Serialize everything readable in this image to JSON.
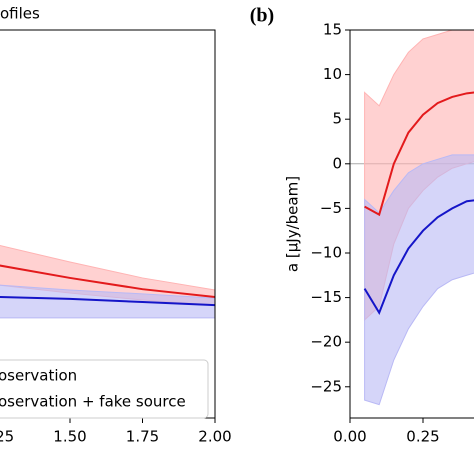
{
  "chart_data": [
    {
      "type": "line",
      "title": "ofiles",
      "x": [
        1.25,
        1.5,
        1.75,
        2.0
      ],
      "xlim": [
        1.0,
        2.0
      ],
      "xticks": [
        1.25,
        {
          "value": 1.5,
          "label": "1.50"
        },
        1.75,
        {
          "value": 2.0,
          "label": "2.00"
        }
      ],
      "ylim": [
        0,
        100
      ],
      "series": [
        {
          "name": "oservation",
          "color": "#e31a1c",
          "band_color": "#ffb3b3",
          "values": [
            39.4,
            36.1,
            33.2,
            31.2
          ],
          "lower": [
            34.3,
            32.2,
            30.4,
            29.1
          ],
          "upper": [
            44.6,
            40.2,
            36.1,
            33.0
          ]
        },
        {
          "name": "oservation + fake source",
          "color": "#1515c8",
          "band_color": "#b9b9f5",
          "values": [
            31.2,
            30.7,
            29.9,
            29.1
          ],
          "lower": [
            25.8,
            25.8,
            25.8,
            25.8
          ],
          "upper": [
            34.3,
            33.0,
            32.0,
            30.9
          ]
        }
      ]
    },
    {
      "type": "line",
      "panel_label": "(b)",
      "ylabel": "a [μJy/beam]",
      "x": [
        0.05,
        0.1,
        0.15,
        0.2,
        0.25,
        0.3,
        0.35,
        0.4,
        0.45
      ],
      "xlim": [
        0,
        0.5
      ],
      "xticks": [
        {
          "value": 0,
          "label": "0.00"
        },
        0.25
      ],
      "ylim": [
        -28.5,
        15
      ],
      "yticks": [
        {
          "value": -25,
          "label": "−25"
        },
        {
          "value": -20,
          "label": "−20"
        },
        {
          "value": -15,
          "label": "−15"
        },
        {
          "value": -10,
          "label": "−10"
        },
        {
          "value": -5,
          "label": "−5"
        },
        0,
        5,
        10,
        15
      ],
      "zero_line": true,
      "series": [
        {
          "color": "#e31a1c",
          "band_color": "#ffb3b3",
          "values": [
            -4.8,
            -5.7,
            0,
            3.5,
            5.5,
            6.8,
            7.5,
            7.9,
            8.1
          ],
          "lower": [
            -17.5,
            -16,
            -9,
            -5,
            -3,
            -1.5,
            -0.5,
            0,
            0.5
          ],
          "upper": [
            8,
            6.5,
            10,
            12.5,
            14,
            14.5,
            15,
            15,
            15
          ]
        },
        {
          "color": "#1515c8",
          "band_color": "#b9b9f5",
          "values": [
            -14,
            -16.7,
            -12.5,
            -9.5,
            -7.5,
            -6,
            -5,
            -4.2,
            -4
          ],
          "lower": [
            -26.5,
            -27,
            -22,
            -18.5,
            -16,
            -14,
            -13,
            -12.5,
            -12
          ],
          "upper": [
            -4,
            -5.5,
            -3,
            -1,
            0,
            0.5,
            1,
            1,
            1
          ]
        }
      ]
    }
  ]
}
